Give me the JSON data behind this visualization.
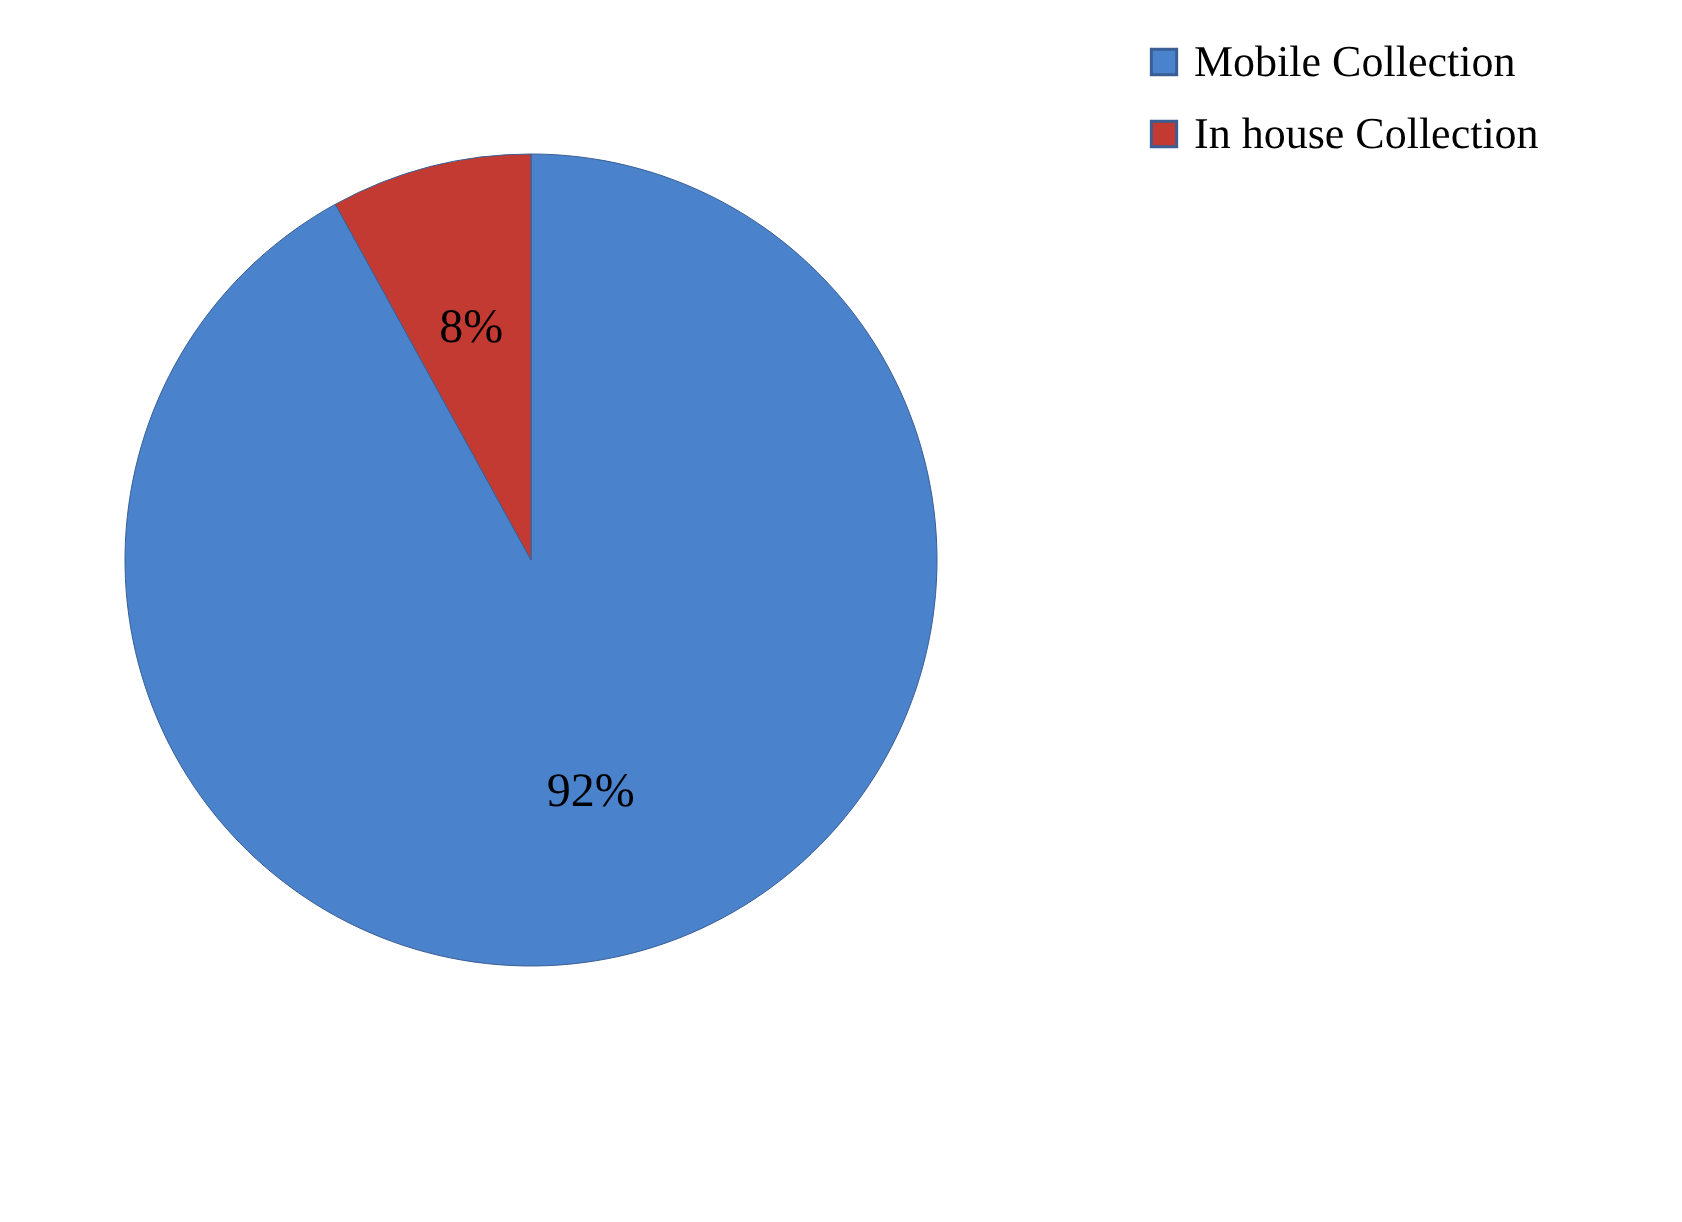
{
  "chart_data": {
    "type": "pie",
    "categories": [
      "Mobile Collection",
      "In house Collection"
    ],
    "values": [
      92,
      8
    ],
    "colors": [
      "#4a82cc",
      "#c23a32"
    ],
    "value_labels": [
      "92%",
      "8%"
    ],
    "legend": "right"
  }
}
